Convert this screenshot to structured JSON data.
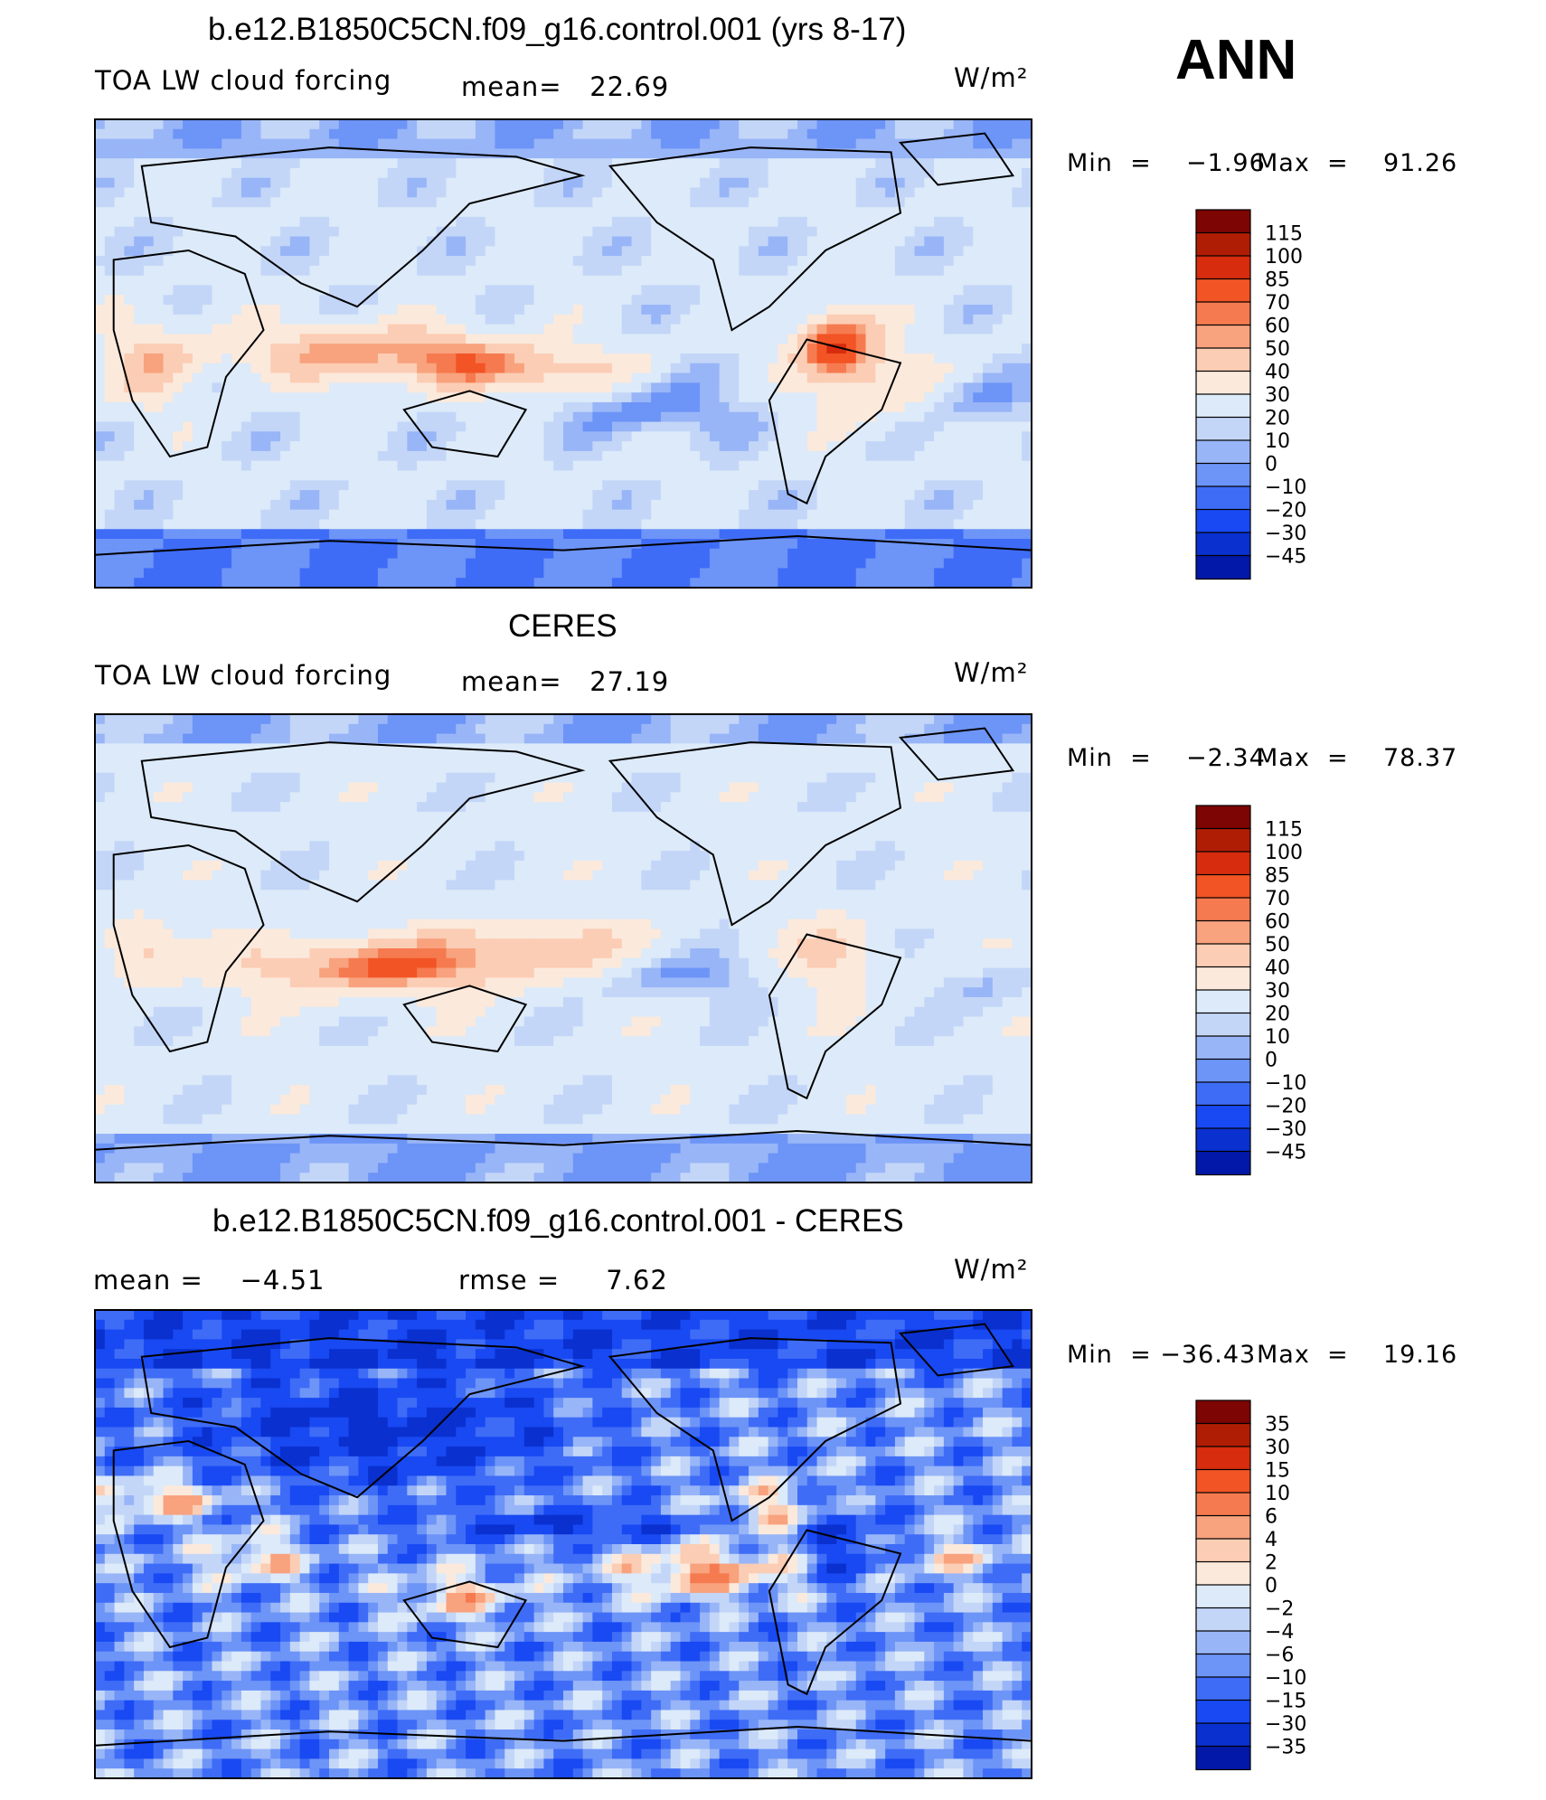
{
  "season_label": "ANN",
  "units": "W/m²",
  "palette": {
    "diverging": [
      "#000a82",
      "#0218a8",
      "#0a30cf",
      "#1849f2",
      "#3e6cf7",
      "#6d94f7",
      "#98b5f7",
      "#c3d6f8",
      "#dceaf9",
      "#fbe9dc",
      "#fbcdb4",
      "#f8a27e",
      "#f67a4f",
      "#f25425",
      "#d72c0d",
      "#b01d05",
      "#7d0503"
    ],
    "coast": "#000000",
    "frame": "#000000"
  },
  "chart_data": [
    {
      "type": "heatmap",
      "title": "b.e12.B1850C5CN.f09_g16.control.001 (yrs 8-17)",
      "left_label": "TOA LW cloud forcing",
      "stat_text": "mean=   22.69",
      "units": "W/m²",
      "min_text": "Min  =    −1.96",
      "max_text": "Max  =    91.26",
      "min": -1.96,
      "max": 91.26,
      "mean": 22.69,
      "colorbar_levels": [
        "115",
        "100",
        "85",
        "70",
        "60",
        "50",
        "40",
        "30",
        "20",
        "10",
        "0",
        "−10",
        "−20",
        "−30",
        "−45"
      ],
      "field": "model"
    },
    {
      "type": "heatmap",
      "title": "CERES",
      "left_label": "TOA LW cloud forcing",
      "stat_text": "mean=   27.19",
      "units": "W/m²",
      "min_text": "Min  =    −2.34",
      "max_text": "Max  =    78.37",
      "min": -2.34,
      "max": 78.37,
      "mean": 27.19,
      "colorbar_levels": [
        "115",
        "100",
        "85",
        "70",
        "60",
        "50",
        "40",
        "30",
        "20",
        "10",
        "0",
        "−10",
        "−20",
        "−30",
        "−45"
      ],
      "field": "obs"
    },
    {
      "type": "heatmap",
      "title": "b.e12.B1850C5CN.f09_g16.control.001 - CERES",
      "left_label": "mean =    −4.51",
      "stat_text": "rmse =     7.62",
      "units": "W/m²",
      "min_text": "Min  = −36.43",
      "max_text": "Max  =    19.16",
      "min": -36.43,
      "max": 19.16,
      "mean": -4.51,
      "rmse": 7.62,
      "colorbar_levels": [
        "35",
        "30",
        "15",
        "10",
        "6",
        "4",
        "2",
        "0",
        "−2",
        "−4",
        "−6",
        "−10",
        "−15",
        "−30",
        "−35"
      ],
      "field": "diff"
    }
  ]
}
